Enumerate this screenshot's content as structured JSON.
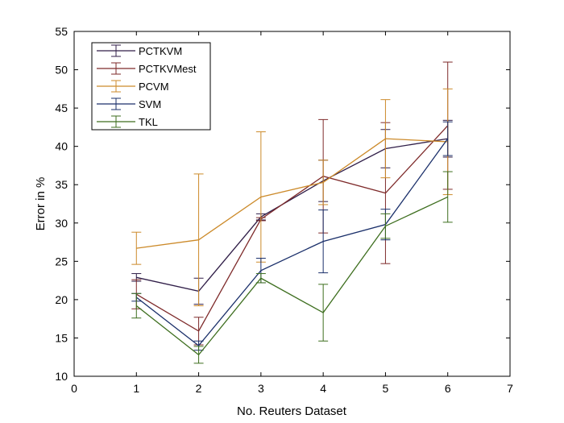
{
  "chart_data": {
    "type": "line",
    "title": "",
    "xlabel": "No. Reuters Dataset",
    "ylabel": "Error in %",
    "xlim": [
      0,
      7
    ],
    "ylim": [
      10,
      55
    ],
    "xticks": [
      "0",
      "1",
      "2",
      "3",
      "4",
      "5",
      "6",
      "7"
    ],
    "yticks": [
      "10",
      "15",
      "20",
      "25",
      "30",
      "35",
      "40",
      "45",
      "50",
      "55"
    ],
    "grid": false,
    "legend_position": "top-left",
    "x": [
      1,
      2,
      3,
      4,
      5,
      6
    ],
    "series": [
      {
        "name": "PCTKVM",
        "color": "#301e48",
        "values": [
          22.9,
          21.1,
          30.8,
          35.5,
          39.7,
          41.0
        ],
        "error": [
          0.5,
          1.7,
          0.4,
          2.7,
          2.5,
          2.4
        ]
      },
      {
        "name": "PCTKVMest",
        "color": "#7e2a2a",
        "values": [
          20.7,
          15.9,
          30.5,
          36.1,
          33.9,
          42.7
        ],
        "error": [
          1.9,
          1.8,
          0.2,
          7.4,
          9.2,
          8.3
        ]
      },
      {
        "name": "PCVM",
        "color": "#cc8a2a",
        "values": [
          26.7,
          27.8,
          33.4,
          35.3,
          41.0,
          40.6
        ],
        "error": [
          2.1,
          8.6,
          8.5,
          2.9,
          5.1,
          6.9
        ]
      },
      {
        "name": "SVM",
        "color": "#1a2f6a",
        "values": [
          20.3,
          14.0,
          23.8,
          27.6,
          29.8,
          41.0
        ],
        "error": [
          0.5,
          0.6,
          1.6,
          4.1,
          2.0,
          2.2
        ]
      },
      {
        "name": "TKL",
        "color": "#3d6e1e",
        "values": [
          19.2,
          12.8,
          22.8,
          18.3,
          29.6,
          33.4
        ],
        "error": [
          1.6,
          1.1,
          0.6,
          3.7,
          1.6,
          3.3
        ]
      }
    ]
  }
}
